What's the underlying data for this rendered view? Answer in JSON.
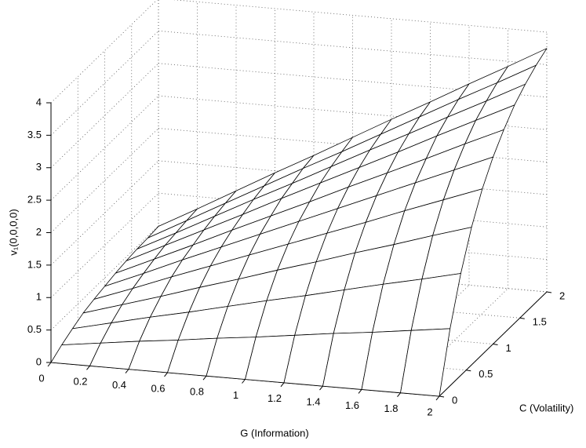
{
  "chart_data": {
    "type": "surface",
    "xlabel": "G (Information)",
    "ylabel": "C (Volatility)",
    "zlabel": "v₁(0,0,0,0)",
    "x": [
      0,
      0.2,
      0.4,
      0.6,
      0.8,
      1,
      1.2,
      1.4,
      1.6,
      1.8,
      2
    ],
    "y": [
      0,
      0.2,
      0.4,
      0.6,
      0.8,
      1,
      1.2,
      1.4,
      1.6,
      1.8,
      2
    ],
    "z": [
      [
        0,
        0,
        0,
        0,
        0,
        0,
        0,
        0,
        0,
        0,
        0
      ],
      [
        0.11,
        0.19,
        0.27,
        0.34,
        0.42,
        0.49,
        0.57,
        0.65,
        0.72,
        0.8,
        0.88
      ],
      [
        0.2,
        0.34,
        0.48,
        0.61,
        0.75,
        0.89,
        1.02,
        1.16,
        1.3,
        1.43,
        1.57
      ],
      [
        0.28,
        0.46,
        0.64,
        0.83,
        1.01,
        1.2,
        1.38,
        1.57,
        1.75,
        1.94,
        2.12
      ],
      [
        0.33,
        0.55,
        0.78,
        1.0,
        1.22,
        1.44,
        1.66,
        1.88,
        2.11,
        2.33,
        2.55
      ],
      [
        0.37,
        0.62,
        0.88,
        1.13,
        1.38,
        1.63,
        1.88,
        2.13,
        2.38,
        2.63,
        2.88
      ],
      [
        0.41,
        0.68,
        0.95,
        1.23,
        1.5,
        1.77,
        2.05,
        2.32,
        2.59,
        2.87,
        3.14
      ],
      [
        0.44,
        0.73,
        1.02,
        1.31,
        1.61,
        1.9,
        2.19,
        2.48,
        2.78,
        3.07,
        3.36
      ],
      [
        0.46,
        0.76,
        1.07,
        1.38,
        1.68,
        1.99,
        2.3,
        2.6,
        2.91,
        3.21,
        3.52
      ],
      [
        0.47,
        0.79,
        1.11,
        1.43,
        1.75,
        2.06,
        2.38,
        2.7,
        3.02,
        3.33,
        3.65
      ],
      [
        0.49,
        0.81,
        1.14,
        1.47,
        1.79,
        2.12,
        2.45,
        2.77,
        3.1,
        3.42,
        3.75
      ]
    ],
    "xlim": [
      0,
      2
    ],
    "ylim": [
      0,
      2
    ],
    "zlim": [
      0,
      4
    ],
    "xticks": [
      0,
      0.2,
      0.4,
      0.6,
      0.8,
      1,
      1.2,
      1.4,
      1.6,
      1.8,
      2
    ],
    "yticks": [
      0,
      0.5,
      1,
      1.5,
      2
    ],
    "zticks": [
      0,
      0.5,
      1,
      1.5,
      2,
      2.5,
      3,
      3.5,
      4
    ],
    "grid": true,
    "color": "#000000",
    "face_color": "#ffffff"
  }
}
